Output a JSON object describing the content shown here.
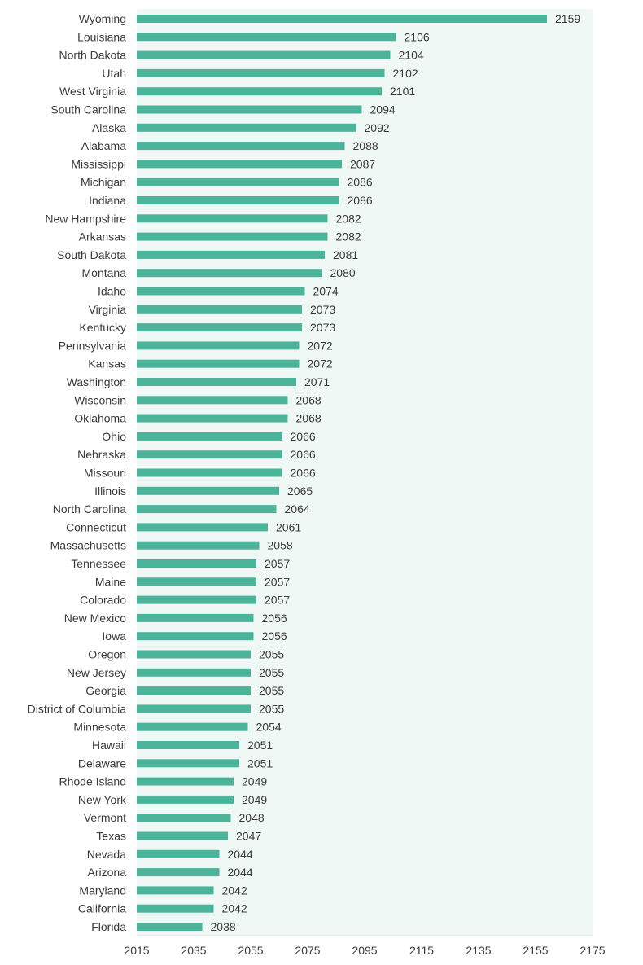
{
  "chart_data": {
    "type": "bar",
    "orientation": "horizontal",
    "title": "",
    "xlabel": "",
    "ylabel": "",
    "xlim": [
      2015,
      2175
    ],
    "xticks": [
      2015,
      2035,
      2055,
      2075,
      2095,
      2115,
      2135,
      2155,
      2175
    ],
    "grid": false,
    "bar_color": "#4cb49a",
    "plot_background": "#f0f8f5",
    "categories": [
      "Wyoming",
      "Louisiana",
      "North Dakota",
      "Utah",
      "West Virginia",
      "South Carolina",
      "Alaska",
      "Alabama",
      "Mississippi",
      "Michigan",
      "Indiana",
      "New Hampshire",
      "Arkansas",
      "South Dakota",
      "Montana",
      "Idaho",
      "Virginia",
      "Kentucky",
      "Pennsylvania",
      "Kansas",
      "Washington",
      "Wisconsin",
      "Oklahoma",
      "Ohio",
      "Nebraska",
      "Missouri",
      "Illinois",
      "North Carolina",
      "Connecticut",
      "Massachusetts",
      "Tennessee",
      "Maine",
      "Colorado",
      "New Mexico",
      "Iowa",
      "Oregon",
      "New Jersey",
      "Georgia",
      "District of Columbia",
      "Minnesota",
      "Hawaii",
      "Delaware",
      "Rhode Island",
      "New York",
      "Vermont",
      "Texas",
      "Nevada",
      "Arizona",
      "Maryland",
      "California",
      "Florida"
    ],
    "values": [
      2159,
      2106,
      2104,
      2102,
      2101,
      2094,
      2092,
      2088,
      2087,
      2086,
      2086,
      2082,
      2082,
      2081,
      2080,
      2074,
      2073,
      2073,
      2072,
      2072,
      2071,
      2068,
      2068,
      2066,
      2066,
      2066,
      2065,
      2064,
      2061,
      2058,
      2057,
      2057,
      2057,
      2056,
      2056,
      2055,
      2055,
      2055,
      2055,
      2054,
      2051,
      2051,
      2049,
      2049,
      2048,
      2047,
      2044,
      2044,
      2042,
      2042,
      2038
    ]
  }
}
